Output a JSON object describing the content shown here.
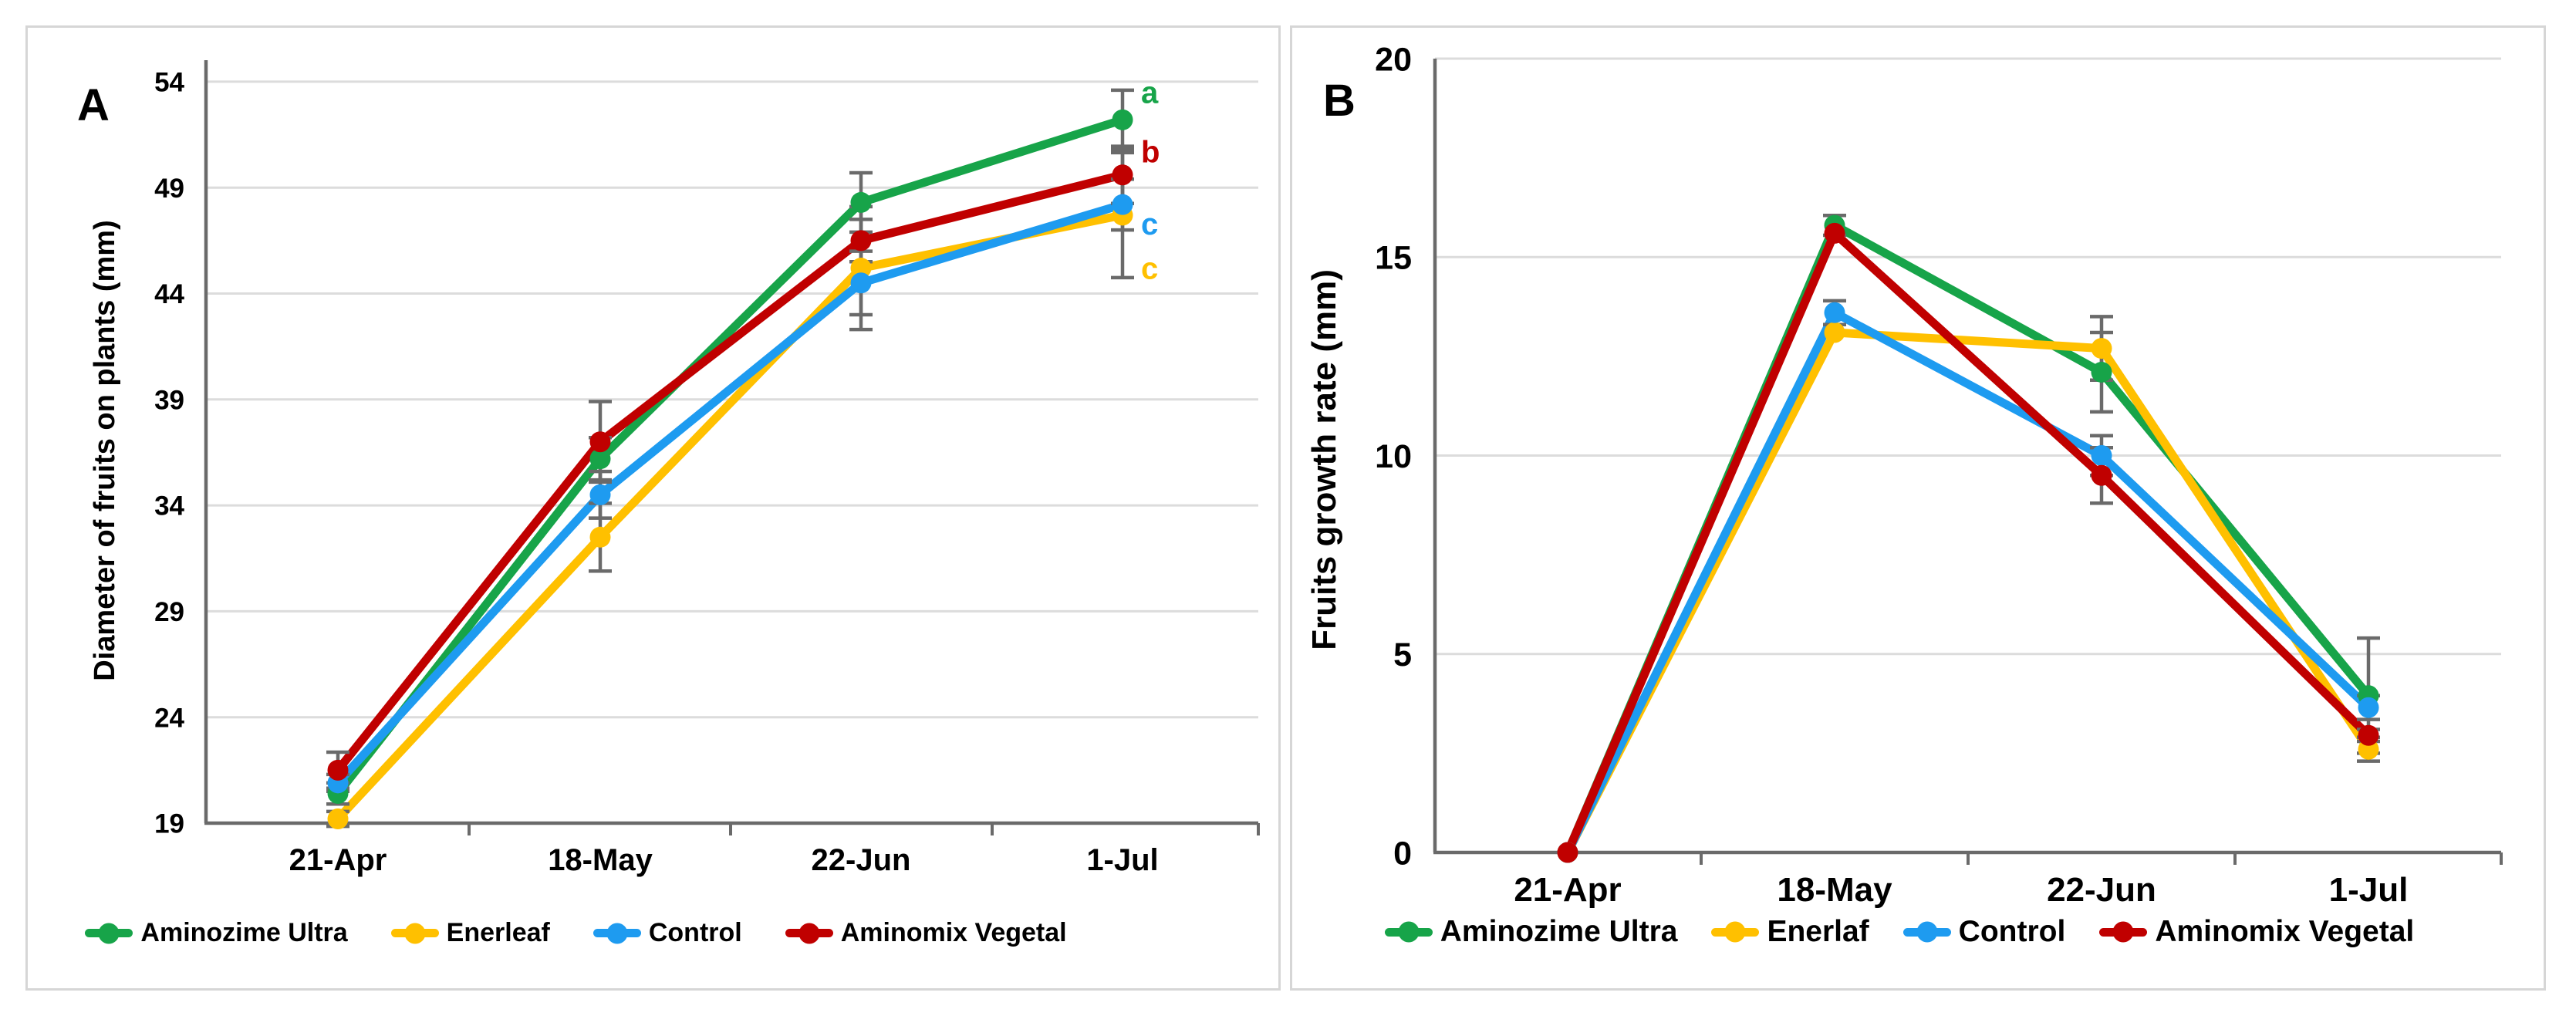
{
  "figure": {
    "panel_a_label": "A",
    "panel_b_label": "B"
  },
  "colors": {
    "green": "#17A449",
    "gold": "#FFC000",
    "blue": "#1E9BF0",
    "dark_red": "#C00000",
    "axis_gray": "#6a6a6a",
    "grid_gray": "#dcdcdc",
    "error_bar_gray": "#6a6a6a"
  },
  "chart_data": [
    {
      "id": "panel-a",
      "type": "line",
      "title": "",
      "ylabel": "Diameter of fruits on plants  (mm)",
      "xlabel": "",
      "categories": [
        "21-Apr",
        "18-May",
        "22-Jun",
        "1-Jul"
      ],
      "ylim": [
        19,
        54
      ],
      "yticks": [
        19,
        24,
        29,
        34,
        39,
        44,
        49,
        54
      ],
      "grid": "horizontal",
      "legend_position": "bottom",
      "series": [
        {
          "name": "Aminozime Ultra",
          "color": "#17A449",
          "values": [
            20.4,
            36.2,
            48.3,
            52.2
          ],
          "errors": [
            0.5,
            1.0,
            1.4,
            1.4
          ]
        },
        {
          "name": "Enerleaf",
          "color": "#FFC000",
          "values": [
            19.2,
            32.5,
            45.2,
            47.7
          ],
          "errors": [
            0.35,
            1.6,
            2.9,
            2.95
          ]
        },
        {
          "name": "Control",
          "color": "#1E9BF0",
          "values": [
            20.9,
            34.5,
            44.5,
            48.2
          ],
          "errors": [
            0.4,
            1.1,
            1.5,
            1.2
          ]
        },
        {
          "name": "Aminomix Vegetal",
          "color": "#C00000",
          "values": [
            21.5,
            37.0,
            46.5,
            49.6
          ],
          "errors": [
            0.85,
            1.9,
            1.0,
            1.35
          ]
        }
      ],
      "annotations": [
        {
          "text": "a",
          "color": "#17A449",
          "category": "1-Jul",
          "y": 53.5
        },
        {
          "text": "b",
          "color": "#C00000",
          "category": "1-Jul",
          "y": 50.7
        },
        {
          "text": "c",
          "color": "#1E9BF0",
          "category": "1-Jul",
          "y": 47.3
        },
        {
          "text": "c",
          "color": "#FFC000",
          "category": "1-Jul",
          "y": 45.2
        }
      ]
    },
    {
      "id": "panel-b",
      "type": "line",
      "title": "",
      "ylabel": "Fruits growth rate (mm)",
      "xlabel": "",
      "categories": [
        "21-Apr",
        "18-May",
        "22-Jun",
        "1-Jul"
      ],
      "ylim": [
        0,
        20
      ],
      "yticks": [
        0,
        5,
        10,
        15,
        20
      ],
      "grid": "horizontal",
      "legend_position": "bottom",
      "series": [
        {
          "name": "Aminozime Ultra",
          "color": "#17A449",
          "values": [
            0,
            15.8,
            12.1,
            3.95
          ],
          "errors": [
            0,
            0.25,
            1.0,
            1.45
          ]
        },
        {
          "name": "Enerlaf",
          "color": "#FFC000",
          "values": [
            0,
            13.1,
            12.7,
            2.6
          ],
          "errors": [
            0,
            0,
            0.8,
            0.3
          ]
        },
        {
          "name": "Control",
          "color": "#1E9BF0",
          "values": [
            0,
            13.6,
            10.0,
            3.65
          ],
          "errors": [
            0,
            0.3,
            0.5,
            0.3
          ]
        },
        {
          "name": "Aminomix Vegetal",
          "color": "#C00000",
          "values": [
            0,
            15.6,
            9.5,
            2.95
          ],
          "errors": [
            0,
            0,
            0.7,
            0.15
          ]
        }
      ],
      "annotations": []
    }
  ]
}
